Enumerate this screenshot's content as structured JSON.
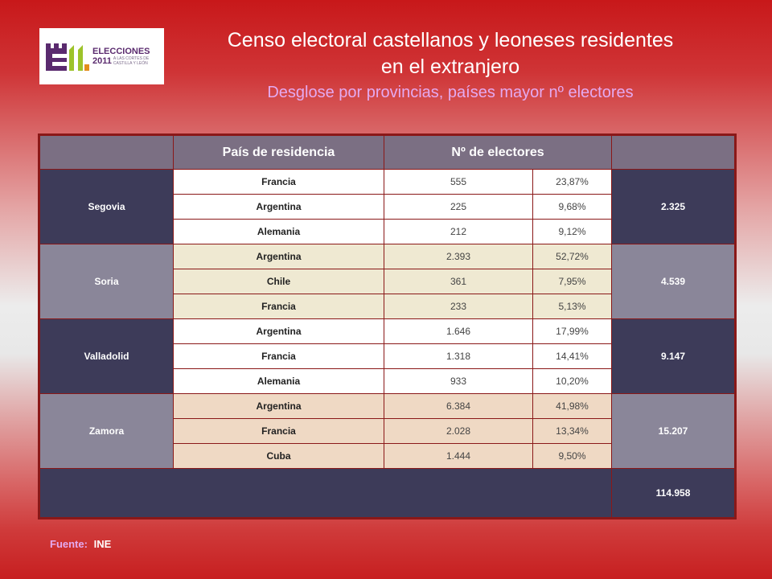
{
  "logo": {
    "line1": "ELECCIONES",
    "line2": "2011",
    "sub1": "A LAS CORTES DE",
    "sub2": "CASTILLA Y LEÓN"
  },
  "header": {
    "title_line1": "Censo electoral castellanos y leoneses residentes",
    "title_line2": "en el extranjero",
    "subtitle": "Desglose por provincias, países mayor nº electores"
  },
  "table": {
    "col_country": "País de residencia",
    "col_electors": "Nº de electores",
    "provinces": [
      {
        "name": "Segovia",
        "total": "2.325",
        "rows": [
          {
            "country": "Francia",
            "electors": "555",
            "pct": "23,87%"
          },
          {
            "country": "Argentina",
            "electors": "225",
            "pct": "9,68%"
          },
          {
            "country": "Alemania",
            "electors": "212",
            "pct": "9,12%"
          }
        ]
      },
      {
        "name": "Soria",
        "total": "4.539",
        "rows": [
          {
            "country": "Argentina",
            "electors": "2.393",
            "pct": "52,72%"
          },
          {
            "country": "Chile",
            "electors": "361",
            "pct": "7,95%"
          },
          {
            "country": "Francia",
            "electors": "233",
            "pct": "5,13%"
          }
        ]
      },
      {
        "name": "Valladolid",
        "total": "9.147",
        "rows": [
          {
            "country": "Argentina",
            "electors": "1.646",
            "pct": "17,99%"
          },
          {
            "country": "Francia",
            "electors": "1.318",
            "pct": "14,41%"
          },
          {
            "country": "Alemania",
            "electors": "933",
            "pct": "10,20%"
          }
        ]
      },
      {
        "name": "Zamora",
        "total": "15.207",
        "rows": [
          {
            "country": "Argentina",
            "electors": "6.384",
            "pct": "41,98%"
          },
          {
            "country": "Francia",
            "electors": "2.028",
            "pct": "13,34%"
          },
          {
            "country": "Cuba",
            "electors": "1.444",
            "pct": "9,50%"
          }
        ]
      }
    ],
    "grand_total": "114.958"
  },
  "footer": {
    "source_label": "Fuente:",
    "source_value": "INE"
  },
  "colors": {
    "dark_band": "#3d3b59",
    "grey_band": "#8a8699",
    "border": "#8a1818",
    "accent_pink": "#e4aaf0"
  }
}
